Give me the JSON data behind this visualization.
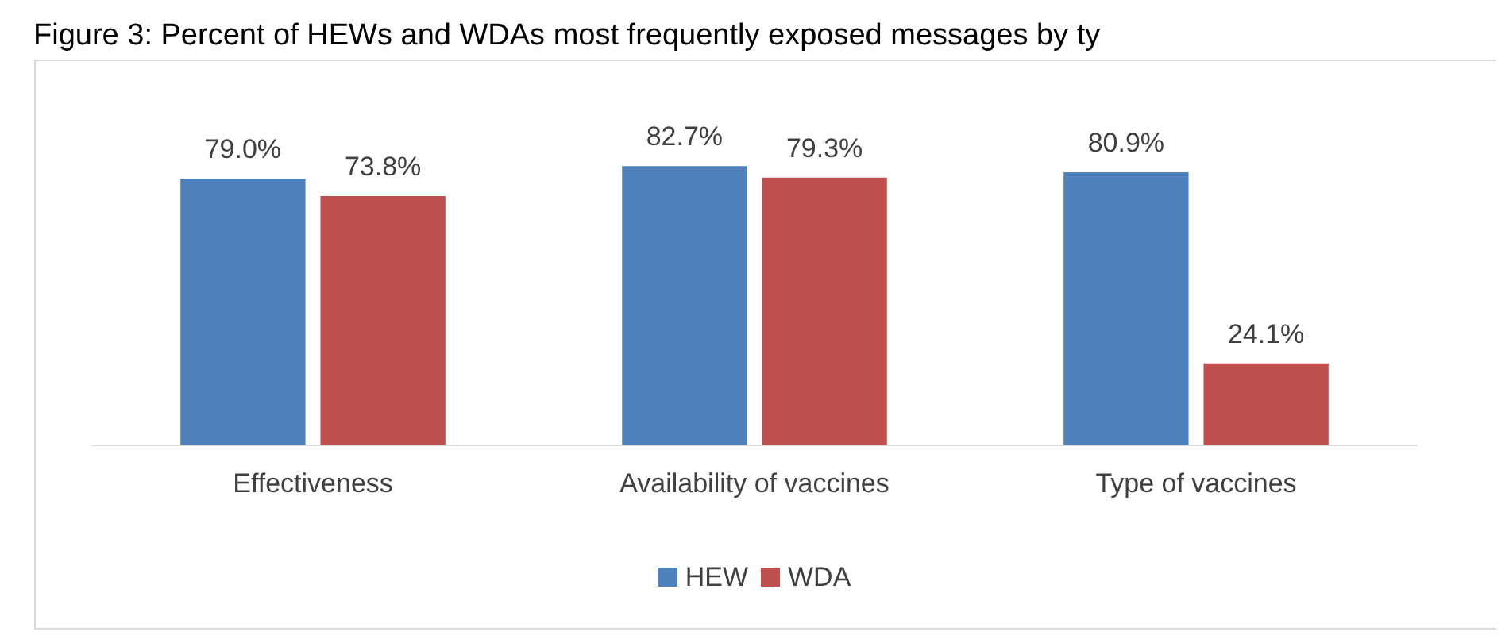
{
  "chart_data": {
    "type": "bar",
    "title": "Figure 3: Percent of HEWs and WDAs most frequently exposed messages by ty",
    "categories": [
      "Effectiveness",
      "Availability of vaccines",
      "Type of vaccines"
    ],
    "series": [
      {
        "name": "HEW",
        "color": "#4f81bd",
        "values": [
          79.0,
          82.7,
          80.9
        ],
        "value_labels": [
          "79.0%",
          "82.7%",
          "80.9%"
        ]
      },
      {
        "name": "WDA",
        "color": "#c0504d",
        "values": [
          73.8,
          79.3,
          24.1
        ],
        "value_labels": [
          "73.8%",
          "79.3%",
          "24.1%"
        ]
      }
    ],
    "legend": "bottom"
  }
}
